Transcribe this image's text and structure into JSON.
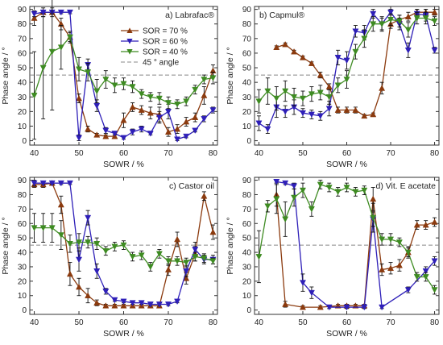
{
  "chart_data": [
    {
      "type": "line",
      "title": "a) Labrafac®",
      "xlabel": "SOWR / %",
      "ylabel": "Phase angle / °",
      "xlim": [
        39,
        81
      ],
      "ylim": [
        -3,
        92
      ],
      "xticks": [
        40,
        50,
        60,
        70,
        80
      ],
      "yticks": [
        0,
        10,
        20,
        30,
        40,
        50,
        60,
        70,
        80,
        90
      ],
      "reference_line": {
        "y": 45,
        "name": "45 ° angle"
      },
      "legend": "top-right",
      "series": [
        {
          "name": "SOR = 70 %",
          "color": "#8B3A0E",
          "marker": "triangle-up",
          "x": [
            40,
            42,
            44,
            46,
            48,
            50,
            52,
            54,
            56,
            58,
            60,
            62,
            64,
            66,
            68,
            70,
            72,
            74,
            76,
            78,
            80
          ],
          "y": [
            84,
            88,
            88,
            80,
            71,
            29,
            8,
            4,
            3,
            3,
            14,
            23,
            21,
            19,
            18,
            6,
            8,
            13,
            16,
            31,
            48
          ],
          "err": [
            5,
            3,
            3,
            4,
            3,
            3,
            2,
            1,
            1,
            1,
            5,
            3,
            3,
            4,
            5,
            3,
            3,
            3,
            3,
            6,
            4
          ]
        },
        {
          "name": "SOR = 60 %",
          "color": "#2E1FB8",
          "marker": "triangle-down",
          "x": [
            40,
            42,
            44,
            46,
            48,
            50,
            52,
            54,
            56,
            58,
            60,
            62,
            64,
            66,
            68,
            70,
            72,
            74,
            76,
            78,
            80
          ],
          "y": [
            87,
            88,
            88,
            88,
            88,
            2,
            52,
            24,
            7,
            5,
            2,
            6,
            8,
            5,
            16,
            20,
            1,
            3,
            7,
            15,
            21
          ],
          "err": [
            2,
            1,
            1,
            1,
            1,
            2,
            4,
            4,
            2,
            1,
            1,
            2,
            2,
            1,
            4,
            5,
            1,
            1,
            1,
            2,
            2
          ]
        },
        {
          "name": "SOR = 40 %",
          "color": "#3E8B22",
          "marker": "triangle-down",
          "x": [
            40,
            42,
            44,
            46,
            48,
            50,
            52,
            54,
            56,
            58,
            60,
            62,
            64,
            66,
            68,
            70,
            72,
            74,
            76,
            78,
            80
          ],
          "y": [
            31,
            50,
            61,
            64,
            71,
            49,
            47,
            34,
            42,
            38,
            39,
            37,
            32,
            30,
            29,
            26,
            25,
            27,
            35,
            42,
            43
          ],
          "err": [
            30,
            35,
            40,
            15,
            4,
            8,
            6,
            8,
            6,
            5,
            4,
            4,
            3,
            3,
            4,
            4,
            3,
            3,
            3,
            3,
            4
          ]
        }
      ]
    },
    {
      "type": "line",
      "title": "b) Capmul®",
      "xlabel": "SOWR / %",
      "ylabel": "Phase angle / °",
      "xlim": [
        39,
        81
      ],
      "ylim": [
        -3,
        92
      ],
      "xticks": [
        40,
        50,
        60,
        70,
        80
      ],
      "yticks": [
        0,
        10,
        20,
        30,
        40,
        50,
        60,
        70,
        80,
        90
      ],
      "reference_line": {
        "y": 45,
        "name": "45 ° angle"
      },
      "series": [
        {
          "name": "SOR = 70 %",
          "color": "#8B3A0E",
          "marker": "triangle-up",
          "x": [
            44,
            46,
            48,
            50,
            52,
            54,
            56,
            58,
            60,
            62,
            64,
            66,
            68,
            70,
            72,
            74,
            76,
            78,
            80
          ],
          "y": [
            64,
            66,
            61,
            57,
            53,
            45,
            37,
            21,
            21,
            21,
            17,
            18,
            36,
            80,
            83,
            85,
            88,
            88,
            88
          ],
          "err": [
            1,
            1,
            1,
            1,
            1,
            2,
            2,
            2,
            2,
            2,
            1,
            1,
            4,
            3,
            3,
            3,
            2,
            2,
            2
          ]
        },
        {
          "name": "SOR = 60 %",
          "color": "#2E1FB8",
          "marker": "triangle-down",
          "x": [
            40,
            42,
            44,
            46,
            48,
            50,
            52,
            54,
            56,
            58,
            60,
            62,
            64,
            66,
            68,
            70,
            72,
            74,
            76,
            78,
            80
          ],
          "y": [
            12,
            8,
            23,
            20,
            23,
            19,
            18,
            17,
            22,
            57,
            55,
            75,
            74,
            87,
            80,
            88,
            80,
            62,
            87,
            86,
            62
          ],
          "err": [
            5,
            3,
            7,
            4,
            5,
            3,
            3,
            3,
            5,
            5,
            6,
            4,
            5,
            3,
            5,
            2,
            4,
            5,
            3,
            4,
            2
          ]
        },
        {
          "name": "SOR = 40 %",
          "color": "#3E8B22",
          "marker": "triangle-down",
          "x": [
            40,
            42,
            44,
            46,
            48,
            50,
            52,
            54,
            56,
            58,
            60,
            62,
            64,
            66,
            68,
            70,
            72,
            74,
            76,
            78,
            80
          ],
          "y": [
            27,
            34,
            29,
            34,
            30,
            29,
            32,
            33,
            30,
            38,
            42,
            61,
            70,
            80,
            80,
            83,
            82,
            76,
            84,
            84,
            82
          ],
          "err": [
            8,
            9,
            8,
            7,
            6,
            5,
            5,
            5,
            5,
            5,
            6,
            5,
            6,
            5,
            4,
            4,
            4,
            5,
            4,
            4,
            3
          ]
        }
      ]
    },
    {
      "type": "line",
      "title": "c) Castor oil",
      "xlabel": "SOWR / %",
      "ylabel": "Phase angle / °",
      "xlim": [
        39,
        81
      ],
      "ylim": [
        -3,
        92
      ],
      "xticks": [
        40,
        50,
        60,
        70,
        80
      ],
      "yticks": [
        0,
        10,
        20,
        30,
        40,
        50,
        60,
        70,
        80,
        90
      ],
      "reference_line": {
        "y": 45,
        "name": "45 ° angle"
      },
      "series": [
        {
          "name": "SOR = 70 %",
          "color": "#8B3A0E",
          "marker": "triangle-up",
          "x": [
            40,
            42,
            44,
            46,
            48,
            50,
            52,
            54,
            56,
            58,
            60,
            62,
            64,
            66,
            68,
            70,
            72,
            74,
            76,
            78,
            80
          ],
          "y": [
            87,
            87,
            88,
            73,
            25,
            16,
            10,
            5,
            3,
            3,
            3,
            3,
            3,
            3,
            3,
            28,
            49,
            22,
            39,
            79,
            54
          ],
          "err": [
            2,
            2,
            1,
            6,
            8,
            6,
            5,
            2,
            1,
            1,
            1,
            1,
            1,
            1,
            1,
            4,
            5,
            4,
            5,
            3,
            5
          ]
        },
        {
          "name": "SOR = 60 %",
          "color": "#2E1FB8",
          "marker": "triangle-down",
          "x": [
            40,
            42,
            44,
            46,
            48,
            50,
            52,
            54,
            56,
            58,
            60,
            62,
            64,
            66,
            68,
            70,
            72,
            74,
            76,
            78,
            80
          ],
          "y": [
            88,
            88,
            88,
            88,
            88,
            35,
            64,
            27,
            13,
            7,
            6,
            5,
            5,
            4,
            4,
            4,
            6,
            27,
            42,
            35,
            35
          ],
          "err": [
            2,
            1,
            1,
            1,
            1,
            8,
            5,
            5,
            2,
            1,
            1,
            1,
            1,
            1,
            1,
            1,
            1,
            4,
            5,
            3,
            3
          ]
        },
        {
          "name": "SOR = 40 %",
          "color": "#3E8B22",
          "marker": "triangle-down",
          "x": [
            40,
            42,
            44,
            46,
            48,
            50,
            52,
            54,
            56,
            58,
            60,
            62,
            64,
            66,
            68,
            70,
            72,
            74,
            76,
            78,
            80
          ],
          "y": [
            57,
            57,
            57,
            52,
            46,
            47,
            47,
            46,
            41,
            44,
            45,
            37,
            38,
            30,
            39,
            34,
            34,
            33,
            37,
            36,
            34
          ],
          "err": [
            10,
            10,
            10,
            10,
            6,
            6,
            4,
            4,
            3,
            3,
            3,
            3,
            3,
            3,
            3,
            3,
            3,
            3,
            3,
            3,
            2
          ]
        }
      ]
    },
    {
      "type": "line",
      "title": "d) Vit. E acetate",
      "xlabel": "SOWR / %",
      "ylabel": "Phase angle / °",
      "xlim": [
        39,
        81
      ],
      "ylim": [
        -3,
        92
      ],
      "xticks": [
        40,
        50,
        60,
        70,
        80
      ],
      "yticks": [
        0,
        10,
        20,
        30,
        40,
        50,
        60,
        70,
        80,
        90
      ],
      "reference_line": {
        "y": 45,
        "name": "45 ° angle"
      },
      "series": [
        {
          "name": "SOR = 70 %",
          "color": "#8B3A0E",
          "marker": "triangle-up",
          "x": [
            44,
            46,
            50,
            54,
            58,
            60,
            62,
            64,
            66,
            68,
            70,
            72,
            74,
            76,
            78,
            80
          ],
          "y": [
            80,
            4,
            2,
            2,
            3,
            3,
            3,
            3,
            77,
            28,
            29,
            31,
            40,
            59,
            59,
            61
          ],
          "err": [
            8,
            2,
            1,
            1,
            1,
            1,
            1,
            1,
            8,
            4,
            4,
            4,
            4,
            3,
            3,
            3
          ]
        },
        {
          "name": "SOR = 60 %",
          "color": "#2E1FB8",
          "marker": "triangle-down",
          "x": [
            44,
            46,
            48,
            50,
            52,
            56,
            60,
            64,
            66,
            68,
            74,
            78,
            80
          ],
          "y": [
            89,
            88,
            86,
            19,
            12,
            2,
            2,
            2,
            63,
            2,
            14,
            27,
            34
          ],
          "err": [
            1,
            1,
            2,
            6,
            4,
            1,
            1,
            1,
            5,
            1,
            2,
            3,
            3
          ]
        },
        {
          "name": "SOR = 40 %",
          "color": "#3E8B22",
          "marker": "triangle-down",
          "x": [
            40,
            42,
            44,
            46,
            48,
            50,
            52,
            54,
            56,
            58,
            60,
            62,
            64,
            66,
            68,
            70,
            72,
            74,
            76,
            78,
            80
          ],
          "y": [
            37,
            72,
            77,
            63,
            78,
            83,
            70,
            87,
            85,
            82,
            85,
            82,
            83,
            64,
            49,
            49,
            47,
            40,
            23,
            23,
            14
          ],
          "err": [
            18,
            4,
            10,
            12,
            6,
            5,
            5,
            3,
            3,
            3,
            3,
            3,
            3,
            10,
            4,
            4,
            3,
            3,
            3,
            3,
            3
          ]
        }
      ]
    }
  ]
}
